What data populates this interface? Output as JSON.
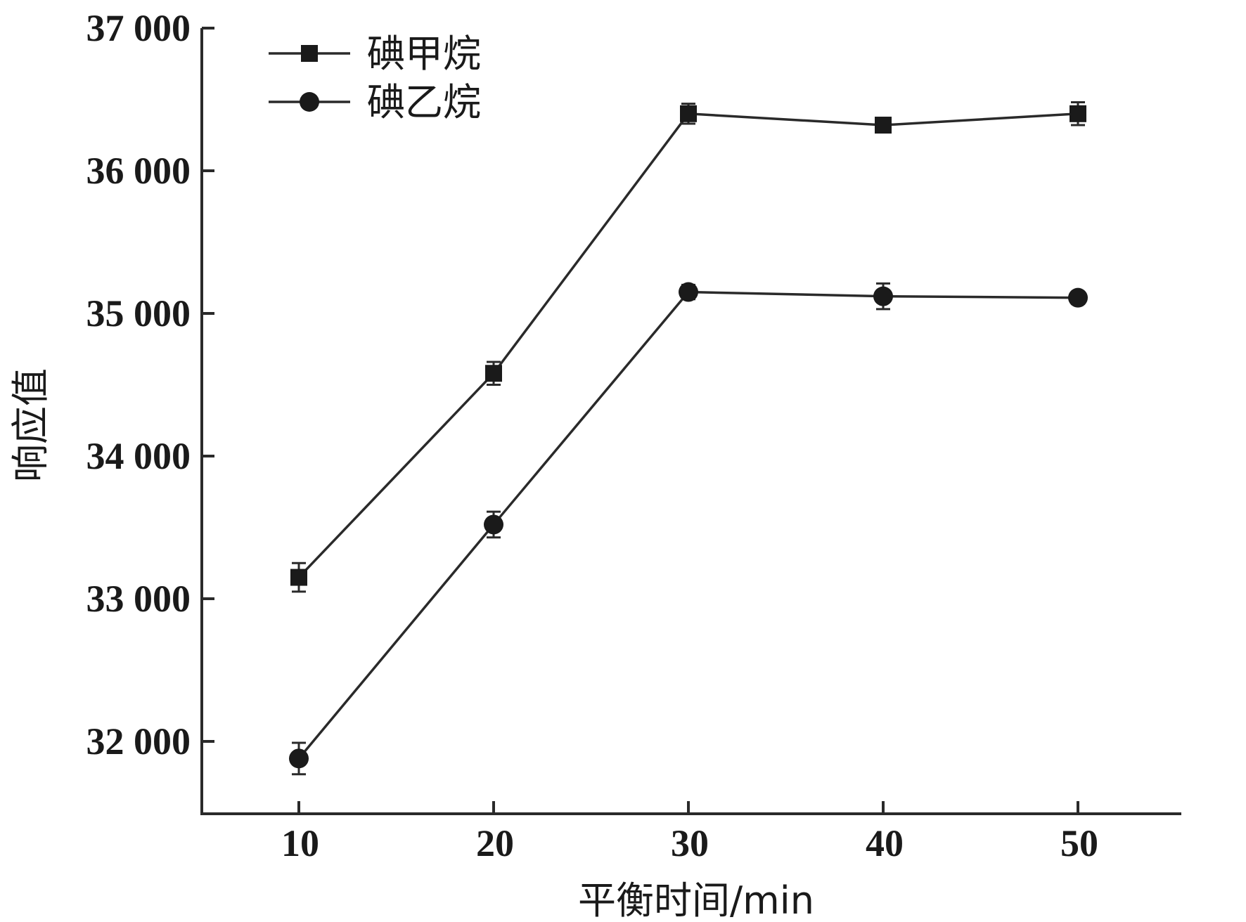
{
  "chart_data": {
    "type": "line",
    "xlabel": "平衡时间/min",
    "ylabel": "响应值",
    "x": [
      10,
      20,
      30,
      40,
      50
    ],
    "x_ticks": [
      "10",
      "20",
      "30",
      "40",
      "50"
    ],
    "y_ticks": [
      "32 000",
      "33 000",
      "34 000",
      "35 000",
      "36 000",
      "37 000"
    ],
    "y_tick_values": [
      32000,
      33000,
      34000,
      35000,
      36000,
      37000
    ],
    "xlim": [
      5,
      55
    ],
    "ylim": [
      31500,
      37000
    ],
    "grid": false,
    "legend_position": "top-left",
    "series": [
      {
        "name": "碘甲烷",
        "marker": "square",
        "values": [
          33150,
          34580,
          36400,
          36320,
          36400
        ],
        "errors": [
          100,
          80,
          70,
          50,
          80
        ],
        "color": "#1a1a1a"
      },
      {
        "name": "碘乙烷",
        "marker": "circle",
        "values": [
          31880,
          33520,
          35150,
          35120,
          35110
        ],
        "errors": [
          110,
          90,
          50,
          90,
          40
        ],
        "color": "#1a1a1a"
      }
    ]
  }
}
